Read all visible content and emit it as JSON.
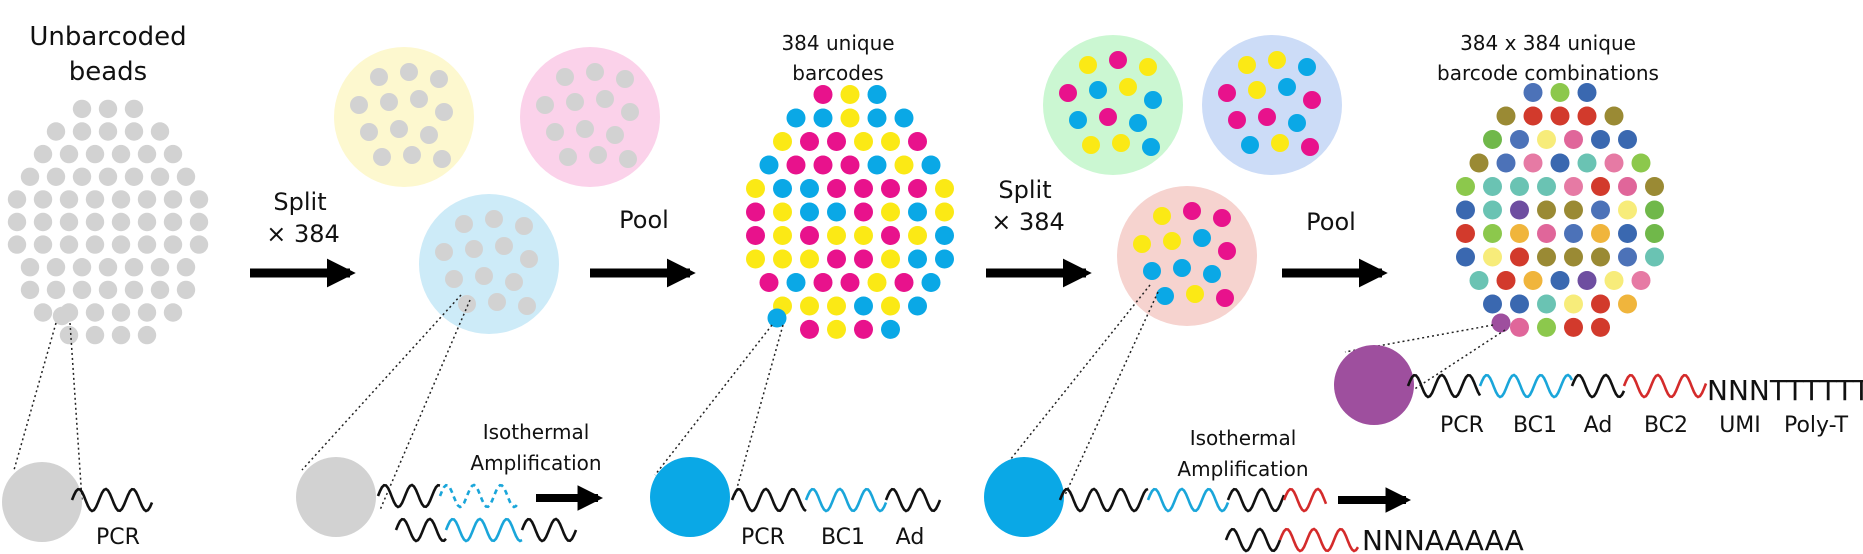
{
  "colors": {
    "bead_gray": "#d2d2d2",
    "cyan": "#0aa8e6",
    "magenta": "#e8128c",
    "yellow": "#fbe915",
    "purple": "#9e4f9e",
    "wave_black": "#111111",
    "wave_cyan": "#1aa6da",
    "wave_red": "#d42b2b",
    "pool_yellow": "#fdf8cf",
    "pool_pink": "#fbd2ea",
    "pool_cyan": "#cdebf8",
    "pool_green": "#cbf7d2",
    "pool_blue": "#ccdcf7",
    "pool_red": "#f6d3cf",
    "multi": [
      "#e0669a",
      "#4c72b8",
      "#f0b53c",
      "#6e4ea0",
      "#6ac3b3",
      "#70b84a",
      "#d23a2c",
      "#f7ec7a",
      "#9a8a34",
      "#e67aa4",
      "#3a68b0",
      "#8cc84c"
    ]
  },
  "titles": {
    "unbarcoded_1": "Unbarcoded",
    "unbarcoded_2": "beads",
    "unique_1": "384 unique",
    "unique_2": "barcodes",
    "combo_1": "384 x 384 unique",
    "combo_2": "barcode combinations"
  },
  "steps": {
    "split1_1": "Split",
    "split1_2": "× 384",
    "pool1": "Pool",
    "split2_1": "Split",
    "split2_2": "× 384",
    "pool2": "Pool"
  },
  "iso1": {
    "line1": "Isothermal",
    "line2": "Amplification"
  },
  "iso2": {
    "line1": "Isothermal",
    "line2": "Amplification"
  },
  "segments": {
    "pcr_a": "PCR",
    "pcr_b": "PCR",
    "bc1_b": "BC1",
    "ad_b": "Ad",
    "seq2": "NNNAAAAA",
    "seq_final": "NNNTTTTTT",
    "pcr_c": "PCR",
    "bc1_c": "BC1",
    "ad_c": "Ad",
    "bc2_c": "BC2",
    "umi_c": "UMI",
    "polyt_c": "Poly-T"
  }
}
